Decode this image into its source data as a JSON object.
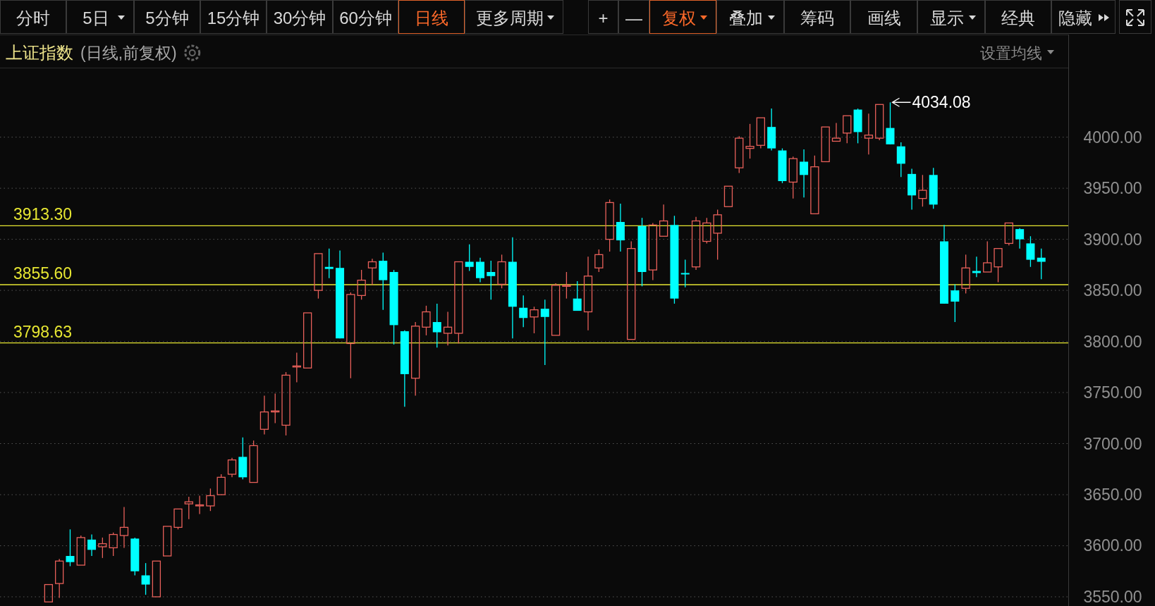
{
  "chart_data": {
    "type": "candlestick",
    "title": "上证指数",
    "subtitle": "(日线,前复权)",
    "annotations": [
      "分时",
      "5日",
      "5分钟",
      "15分钟",
      "30分钟",
      "60分钟",
      "日线",
      "更多周期",
      "+",
      "—",
      "复权",
      "叠加",
      "筹码",
      "画线",
      "显示",
      "经典",
      "隐藏",
      "设置均线",
      "4034.08"
    ],
    "categories": [
      null,
      null,
      null,
      null,
      null,
      null,
      null,
      null,
      null,
      null,
      null,
      null,
      null,
      null,
      null,
      null,
      null,
      null,
      null,
      null,
      null,
      null,
      null,
      null,
      null,
      null,
      null,
      null,
      null,
      null,
      null,
      null,
      null,
      null,
      null,
      null,
      null,
      null,
      null,
      null,
      null,
      null,
      null,
      null,
      null,
      null,
      null,
      null,
      null,
      null,
      null,
      null,
      null,
      null,
      null,
      null,
      null,
      null,
      null,
      null,
      null,
      null,
      null,
      null,
      null,
      null,
      null,
      null,
      null,
      null,
      null,
      null,
      null,
      null,
      null,
      null,
      null,
      null,
      null,
      null,
      null,
      null,
      null,
      null,
      null,
      null,
      null,
      null,
      null,
      null,
      null,
      null,
      null,
      null,
      null,
      null,
      null,
      null,
      null
    ],
    "ohlc": [
      null,
      null,
      null,
      null,
      [
        3545,
        3562,
        3544,
        3562
      ],
      [
        3563,
        3587,
        3549,
        3585
      ],
      [
        3590,
        3616,
        3580,
        3584
      ],
      [
        3581,
        3610,
        3581,
        3608
      ],
      [
        3606,
        3611,
        3590,
        3596
      ],
      [
        3599,
        3608,
        3588,
        3602
      ],
      [
        3598,
        3613,
        3590,
        3611
      ],
      [
        3610,
        3638,
        3598,
        3618
      ],
      [
        3607,
        3608,
        3571,
        3575
      ],
      [
        3571,
        3583,
        3552,
        3562
      ],
      [
        3550,
        3585,
        3550,
        3585
      ],
      [
        3590,
        3620,
        3589,
        3619
      ],
      [
        3618,
        3637,
        3616,
        3636
      ],
      [
        3641,
        3648,
        3626,
        3643
      ],
      [
        3639,
        3649,
        3631,
        3640
      ],
      [
        3639,
        3656,
        3634,
        3649
      ],
      [
        3650,
        3670,
        3650,
        3667
      ],
      [
        3670,
        3686,
        3667,
        3684
      ],
      [
        3687,
        3706,
        3665,
        3667
      ],
      [
        3662,
        3703,
        3662,
        3698
      ],
      [
        3714,
        3747,
        3709,
        3731
      ],
      [
        3731,
        3749,
        3720,
        3732
      ],
      [
        3718,
        3770,
        3708,
        3767
      ],
      [
        3775,
        3789,
        3760,
        3776
      ],
      [
        3774,
        3828,
        3774,
        3828
      ],
      [
        3850,
        3886,
        3842,
        3886
      ],
      [
        3873,
        3891,
        3862,
        3871
      ],
      [
        3872,
        3889,
        3803,
        3803
      ],
      [
        3798,
        3848,
        3764,
        3846
      ],
      [
        3845,
        3870,
        3841,
        3860
      ],
      [
        3872,
        3881,
        3855,
        3878
      ],
      [
        3879,
        3887,
        3831,
        3860
      ],
      [
        3868,
        3870,
        3797,
        3816
      ],
      [
        3810,
        3811,
        3736,
        3768
      ],
      [
        3764,
        3819,
        3747,
        3815
      ],
      [
        3814,
        3835,
        3806,
        3829
      ],
      [
        3819,
        3837,
        3794,
        3809
      ],
      [
        3808,
        3829,
        3796,
        3814
      ],
      [
        3808,
        3878,
        3798,
        3878
      ],
      [
        3878,
        3895,
        3869,
        3873
      ],
      [
        3878,
        3882,
        3858,
        3862
      ],
      [
        3868,
        3879,
        3841,
        3864
      ],
      [
        3856,
        3885,
        3852,
        3878
      ],
      [
        3878,
        3902,
        3803,
        3834
      ],
      [
        3833,
        3845,
        3814,
        3823
      ],
      [
        3824,
        3834,
        3808,
        3831
      ],
      [
        3832,
        3841,
        3777,
        3824
      ],
      [
        3806,
        3857,
        3806,
        3855
      ],
      [
        3854,
        3868,
        3842,
        3855
      ],
      [
        3842,
        3859,
        3830,
        3830
      ],
      [
        3829,
        3883,
        3811,
        3864
      ],
      [
        3872,
        3890,
        3868,
        3885
      ],
      [
        3900,
        3939,
        3888,
        3936
      ],
      [
        3917,
        3935,
        3888,
        3899
      ],
      [
        3802,
        3898,
        3802,
        3891
      ],
      [
        3913,
        3921,
        3854,
        3868
      ],
      [
        3870,
        3916,
        3860,
        3914
      ],
      [
        3903,
        3934,
        3902,
        3918
      ],
      [
        3914,
        3923,
        3837,
        3842
      ],
      [
        3867,
        3880,
        3853,
        3866
      ],
      [
        3873,
        3922,
        3870,
        3918
      ],
      [
        3898,
        3921,
        3896,
        3916
      ],
      [
        3906,
        3929,
        3880,
        3924
      ],
      [
        3932,
        3952,
        3932,
        3952
      ],
      [
        3970,
        4001,
        3965,
        3999
      ],
      [
        3989,
        4013,
        3979,
        3991
      ],
      [
        3992,
        4020,
        3989,
        4019
      ],
      [
        4010,
        4028,
        3987,
        3989
      ],
      [
        3987,
        3989,
        3955,
        3957
      ],
      [
        3956,
        3981,
        3940,
        3979
      ],
      [
        3976,
        3988,
        3941,
        3963
      ],
      [
        3925,
        3982,
        3925,
        3971
      ],
      [
        3976,
        4011,
        3976,
        4010
      ],
      [
        3996,
        4014,
        3996,
        3999
      ],
      [
        4004,
        4022,
        3994,
        4021
      ],
      [
        4027,
        4028,
        3994,
        4005
      ],
      [
        3999,
        4023,
        3983,
        4002
      ],
      [
        3999,
        4032,
        3997,
        4032
      ],
      [
        4009,
        4034.08,
        3993,
        3993
      ],
      [
        3991,
        3995,
        3961,
        3974
      ],
      [
        3964,
        3969,
        3929,
        3943
      ],
      [
        3940,
        3963,
        3932,
        3948
      ],
      [
        3963,
        3970,
        3930,
        3934
      ],
      [
        3898,
        3914,
        3837,
        3837
      ],
      [
        3850,
        3856,
        3819,
        3839
      ],
      [
        3852,
        3885,
        3847,
        3872
      ],
      [
        3869,
        3883,
        3863,
        3867
      ],
      [
        3868,
        3898,
        3867,
        3877
      ],
      [
        3873,
        3892,
        3858,
        3891
      ],
      [
        3896,
        3916,
        3894,
        3916
      ],
      [
        3910,
        3911,
        3891,
        3900
      ],
      [
        3896,
        3903,
        3873,
        3880
      ],
      [
        3882,
        3891,
        3861,
        3878
      ],
      null,
      null
    ],
    "colors": [
      null,
      null,
      null,
      null,
      "#e8605a",
      "#e8605a",
      "#00ffff",
      "#e8605a",
      "#00ffff",
      "#e8605a",
      "#e8605a",
      "#e8605a",
      "#00ffff",
      "#00ffff",
      "#e8605a",
      "#e8605a",
      "#e8605a",
      "#e8605a",
      "#e8605a",
      "#e8605a",
      "#e8605a",
      "#e8605a",
      "#00ffff",
      "#e8605a",
      "#e8605a",
      "#e8605a",
      "#e8605a",
      "#e8605a",
      "#e8605a",
      "#e8605a",
      "#00ffff",
      "#00ffff",
      "#e8605a",
      "#e8605a",
      "#e8605a",
      "#00ffff",
      "#00ffff",
      "#00ffff",
      "#e8605a",
      "#e8605a",
      "#00ffff",
      "#e8605a",
      "#e8605a",
      "#00ffff",
      "#00ffff",
      "#00ffff",
      "#e8605a",
      "#00ffff",
      "#00ffff",
      "#e8605a",
      "#00ffff",
      "#e8605a",
      "#e8605a",
      "#00ffff",
      "#e8605a",
      "#e8605a",
      "#e8605a",
      "#00ffff",
      "#e8605a",
      "#00ffff",
      "#e8605a",
      "#e8605a",
      "#00ffff",
      "#00ffff",
      "#e8605a",
      "#e8605a",
      "#e8605a",
      "#e8605a",
      "#e8605a",
      "#e8605a",
      "#e8605a",
      "#00ffff",
      "#00ffff",
      "#e8605a",
      "#00ffff",
      "#e8605a",
      "#e8605a",
      "#e8605a",
      "#e8605a",
      "#00ffff",
      "#e8605a",
      "#e8605a",
      "#00ffff",
      "#00ffff",
      "#00ffff",
      "#e8605a",
      "#00ffff",
      "#00ffff",
      "#00ffff",
      "#e8605a",
      "#00ffff",
      "#e8605a",
      "#e8605a",
      "#e8605a",
      "#00ffff",
      "#00ffff",
      "#00ffff",
      null,
      null
    ],
    "ylim": [
      3541,
      4066
    ],
    "yticks": [
      {
        "value": 3550,
        "label": "3550.00"
      },
      {
        "value": 3600,
        "label": "3600.00"
      },
      {
        "value": 3650,
        "label": "3650.00"
      },
      {
        "value": 3700,
        "label": "3700.00"
      },
      {
        "value": 3750,
        "label": "3750.00"
      },
      {
        "value": 3800,
        "label": "3800.00"
      },
      {
        "value": 3850,
        "label": "3850.00"
      },
      {
        "value": 3900,
        "label": "3900.00"
      },
      {
        "value": 3950,
        "label": "3950.00"
      },
      {
        "value": 4000,
        "label": "4000.00"
      }
    ],
    "grid": "y",
    "tick_labels": "y",
    "ref_lines": [
      {
        "axis": "y",
        "value": 3913.3,
        "label": "3913.30",
        "color": "#e6e632"
      },
      {
        "axis": "y",
        "value": 3855.6,
        "label": "3855.60",
        "color": "#e6e632"
      },
      {
        "axis": "y",
        "value": 3798.63,
        "label": "3798.63",
        "color": "#e6e632"
      }
    ]
  }
}
